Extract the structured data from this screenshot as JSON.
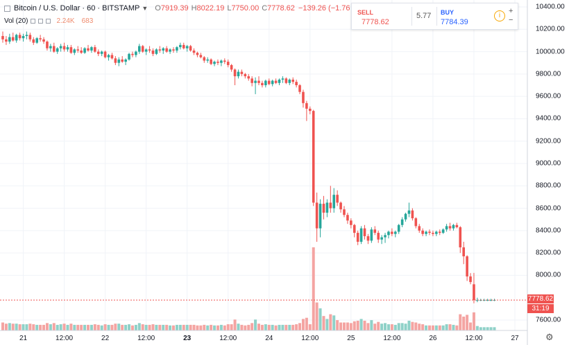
{
  "header": {
    "title": "Bitcoin / U.S. Dollar · 60 · BITSTAMP",
    "open_label": "O",
    "open": "7919.39",
    "high_label": "H",
    "high": "8022.19",
    "low_label": "L",
    "low": "7750.00",
    "close_label": "C",
    "close": "7778.62",
    "change": "−139.26 (−1.76",
    "chevron_icon": "chevron-down-icon"
  },
  "volume": {
    "label": "Vol (20)",
    "value_1": "2.24K",
    "value_2": "683"
  },
  "trade_panel": {
    "sell_label": "SELL",
    "sell_price": "7778.62",
    "spread": "5.77",
    "buy_label": "BUY",
    "buy_price": "7784.39",
    "info_icon": "info-icon",
    "plus_label": "+",
    "minus_label": "−"
  },
  "price_tag": {
    "price": "7778.62",
    "countdown": "31:19"
  },
  "colors": {
    "up": "#26a69a",
    "down": "#ef5350",
    "vol_up": "#8ed1c8",
    "vol_down": "#f4a4a2",
    "grid": "#f0f3f8",
    "accent": "#2962ff"
  },
  "chart_data": {
    "type": "candlestick",
    "y_axis": {
      "ticks": [
        "10400.00",
        "10200.00",
        "10000.00",
        "9800.00",
        "9600.00",
        "9400.00",
        "9200.00",
        "9000.00",
        "8800.00",
        "8600.00",
        "8400.00",
        "8200.00",
        "8000.00",
        "7600.00"
      ],
      "tick_values": [
        10400,
        10200,
        10000,
        9800,
        9600,
        9400,
        9200,
        9000,
        8800,
        8600,
        8400,
        8200,
        8000,
        7600
      ],
      "ylim": [
        7500,
        10460
      ]
    },
    "x_axis": {
      "tick_labels": [
        "21",
        "12:00",
        "22",
        "12:00",
        "23",
        "12:00",
        "24",
        "12:00",
        "25",
        "12:00",
        "26",
        "12:00",
        "27"
      ],
      "tick_bars": [
        6,
        18,
        30,
        42,
        54,
        66,
        78,
        90,
        102,
        114,
        126,
        138,
        150
      ],
      "bold_ticks": [
        4
      ],
      "bar_count": 145
    },
    "series": [
      {
        "name": "BTCUSD",
        "ohlc": [
          [
            10140,
            10180,
            10080,
            10110
          ],
          [
            10110,
            10140,
            10060,
            10090
          ],
          [
            10090,
            10160,
            10070,
            10130
          ],
          [
            10130,
            10170,
            10090,
            10100
          ],
          [
            10100,
            10160,
            10080,
            10150
          ],
          [
            10150,
            10170,
            10100,
            10120
          ],
          [
            10120,
            10160,
            10090,
            10140
          ],
          [
            10140,
            10180,
            10110,
            10150
          ],
          [
            10150,
            10170,
            10090,
            10110
          ],
          [
            10110,
            10130,
            10060,
            10080
          ],
          [
            10080,
            10130,
            10070,
            10120
          ],
          [
            10120,
            10150,
            10090,
            10110
          ],
          [
            10110,
            10130,
            10070,
            10090
          ],
          [
            10090,
            10100,
            10010,
            10030
          ],
          [
            10030,
            10070,
            10000,
            10050
          ],
          [
            10050,
            10080,
            9990,
            10000
          ],
          [
            10000,
            10040,
            9980,
            10030
          ],
          [
            10030,
            10070,
            10000,
            10050
          ],
          [
            10050,
            10080,
            10000,
            10020
          ],
          [
            10020,
            10060,
            10000,
            10040
          ],
          [
            10040,
            10060,
            9980,
            9990
          ],
          [
            9990,
            10030,
            9970,
            10020
          ],
          [
            10020,
            10050,
            9990,
            10010
          ],
          [
            10010,
            10040,
            9980,
            9990
          ],
          [
            9990,
            10040,
            9980,
            10030
          ],
          [
            10030,
            10060,
            10000,
            10010
          ],
          [
            10010,
            10050,
            9990,
            10040
          ],
          [
            10040,
            10060,
            9990,
            10000
          ],
          [
            10000,
            10020,
            9960,
            9980
          ],
          [
            9980,
            10010,
            9960,
            10000
          ],
          [
            10000,
            10010,
            9940,
            9950
          ],
          [
            9950,
            9980,
            9920,
            9970
          ],
          [
            9970,
            9990,
            9930,
            9940
          ],
          [
            9940,
            9960,
            9880,
            9900
          ],
          [
            9900,
            9950,
            9870,
            9930
          ],
          [
            9930,
            9960,
            9900,
            9910
          ],
          [
            9910,
            9940,
            9880,
            9930
          ],
          [
            9930,
            9990,
            9920,
            9980
          ],
          [
            9980,
            10000,
            9950,
            9970
          ],
          [
            9970,
            10010,
            9950,
            10000
          ],
          [
            10000,
            10070,
            9980,
            10050
          ],
          [
            10050,
            10060,
            9990,
            10000
          ],
          [
            10000,
            10030,
            9970,
            10020
          ],
          [
            10020,
            10050,
            9990,
            10010
          ],
          [
            10010,
            10030,
            9960,
            9980
          ],
          [
            9980,
            10030,
            9970,
            10020
          ],
          [
            10020,
            10050,
            9990,
            10010
          ],
          [
            10010,
            10040,
            9980,
            10030
          ],
          [
            10030,
            10050,
            9990,
            10000
          ],
          [
            10000,
            10030,
            9980,
            10020
          ],
          [
            10020,
            10040,
            9990,
            10010
          ],
          [
            10010,
            10050,
            9990,
            10040
          ],
          [
            10040,
            10080,
            10020,
            10060
          ],
          [
            10060,
            10080,
            10020,
            10030
          ],
          [
            10030,
            10060,
            10000,
            10050
          ],
          [
            10050,
            10060,
            10000,
            10010
          ],
          [
            10010,
            10030,
            9970,
            9990
          ],
          [
            9990,
            10000,
            9950,
            9970
          ],
          [
            9970,
            9990,
            9940,
            9950
          ],
          [
            9950,
            9960,
            9900,
            9920
          ],
          [
            9920,
            9950,
            9900,
            9930
          ],
          [
            9930,
            9940,
            9880,
            9890
          ],
          [
            9890,
            9920,
            9870,
            9910
          ],
          [
            9910,
            9930,
            9880,
            9900
          ],
          [
            9900,
            9930,
            9870,
            9920
          ],
          [
            9920,
            9940,
            9890,
            9910
          ],
          [
            9910,
            9930,
            9860,
            9880
          ],
          [
            9880,
            9890,
            9820,
            9840
          ],
          [
            9840,
            9850,
            9700,
            9780
          ],
          [
            9780,
            9840,
            9760,
            9820
          ],
          [
            9820,
            9840,
            9780,
            9800
          ],
          [
            9800,
            9810,
            9760,
            9780
          ],
          [
            9780,
            9800,
            9740,
            9760
          ],
          [
            9760,
            9780,
            9690,
            9720
          ],
          [
            9720,
            9770,
            9620,
            9740
          ],
          [
            9740,
            9780,
            9700,
            9720
          ],
          [
            9720,
            9740,
            9680,
            9700
          ],
          [
            9700,
            9750,
            9680,
            9740
          ],
          [
            9740,
            9760,
            9700,
            9710
          ],
          [
            9710,
            9750,
            9690,
            9740
          ],
          [
            9740,
            9760,
            9710,
            9720
          ],
          [
            9720,
            9760,
            9700,
            9750
          ],
          [
            9750,
            9780,
            9720,
            9760
          ],
          [
            9760,
            9770,
            9710,
            9720
          ],
          [
            9720,
            9760,
            9700,
            9750
          ],
          [
            9750,
            9770,
            9710,
            9730
          ],
          [
            9730,
            9750,
            9680,
            9700
          ],
          [
            9700,
            9710,
            9620,
            9640
          ],
          [
            9640,
            9660,
            9500,
            9540
          ],
          [
            9540,
            9560,
            9380,
            9490
          ],
          [
            9490,
            9510,
            9440,
            9470
          ],
          [
            9470,
            9480,
            8620,
            8650
          ],
          [
            8650,
            8740,
            8300,
            8420
          ],
          [
            8420,
            8680,
            8340,
            8640
          ],
          [
            8640,
            8710,
            8500,
            8560
          ],
          [
            8560,
            8680,
            8520,
            8650
          ],
          [
            8650,
            8800,
            8560,
            8600
          ],
          [
            8600,
            8780,
            8560,
            8720
          ],
          [
            8720,
            8760,
            8620,
            8650
          ],
          [
            8650,
            8660,
            8560,
            8590
          ],
          [
            8590,
            8620,
            8520,
            8540
          ],
          [
            8540,
            8560,
            8460,
            8490
          ],
          [
            8490,
            8510,
            8420,
            8450
          ],
          [
            8450,
            8460,
            8340,
            8380
          ],
          [
            8380,
            8400,
            8270,
            8300
          ],
          [
            8300,
            8440,
            8280,
            8420
          ],
          [
            8420,
            8450,
            8320,
            8350
          ],
          [
            8350,
            8370,
            8280,
            8310
          ],
          [
            8310,
            8430,
            8290,
            8410
          ],
          [
            8410,
            8440,
            8360,
            8380
          ],
          [
            8380,
            8400,
            8290,
            8320
          ],
          [
            8320,
            8360,
            8280,
            8340
          ],
          [
            8340,
            8380,
            8290,
            8360
          ],
          [
            8360,
            8400,
            8330,
            8390
          ],
          [
            8390,
            8420,
            8350,
            8370
          ],
          [
            8370,
            8400,
            8340,
            8390
          ],
          [
            8390,
            8460,
            8370,
            8450
          ],
          [
            8450,
            8520,
            8430,
            8500
          ],
          [
            8500,
            8560,
            8480,
            8550
          ],
          [
            8550,
            8650,
            8520,
            8580
          ],
          [
            8580,
            8600,
            8490,
            8510
          ],
          [
            8510,
            8520,
            8420,
            8440
          ],
          [
            8440,
            8460,
            8380,
            8400
          ],
          [
            8400,
            8420,
            8350,
            8370
          ],
          [
            8370,
            8400,
            8350,
            8390
          ],
          [
            8390,
            8410,
            8360,
            8380
          ],
          [
            8380,
            8400,
            8350,
            8370
          ],
          [
            8370,
            8400,
            8350,
            8390
          ],
          [
            8390,
            8410,
            8360,
            8380
          ],
          [
            8380,
            8420,
            8370,
            8410
          ],
          [
            8410,
            8460,
            8390,
            8440
          ],
          [
            8440,
            8470,
            8400,
            8420
          ],
          [
            8420,
            8460,
            8400,
            8450
          ],
          [
            8450,
            8470,
            8420,
            8430
          ],
          [
            8430,
            8440,
            8200,
            8250
          ],
          [
            8250,
            8300,
            8100,
            8170
          ],
          [
            8170,
            8180,
            7950,
            7990
          ],
          [
            7990,
            8020,
            7920,
            7940
          ],
          [
            7920,
            8022,
            7750,
            7779
          ],
          [
            7779,
            7800,
            7760,
            7779
          ],
          [
            7779,
            7790,
            7770,
            7779
          ],
          [
            7779,
            7790,
            7770,
            7779
          ],
          [
            7779,
            7790,
            7770,
            7779
          ],
          [
            7779,
            7790,
            7770,
            7779
          ],
          [
            7779,
            7790,
            7770,
            7779
          ]
        ]
      }
    ]
  }
}
